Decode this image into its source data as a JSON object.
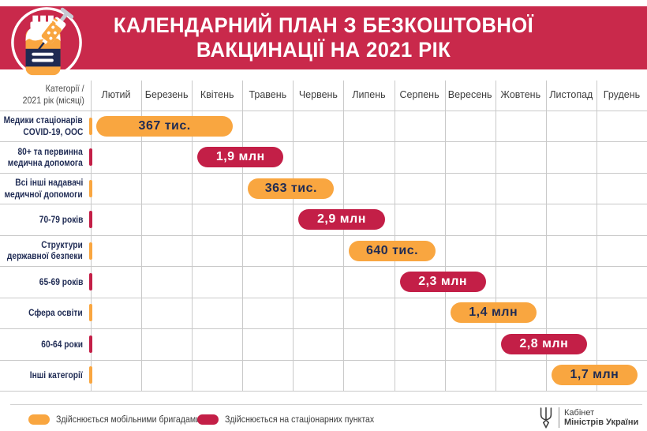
{
  "header": {
    "title_line1": "КАЛЕНДАРНИЙ ПЛАН З БЕЗКОШТОВНОЇ",
    "title_line2": "ВАКЦИНАЦІЇ НА 2021 РІК",
    "banner_color": "#c9294b",
    "icon": "vaccine-vial-and-syringe"
  },
  "chart_data": {
    "type": "gantt",
    "title": "Календарний план з безкоштовної вакцинації на 2021 рік",
    "corner_label_lines": [
      "Категорії /",
      "2021 рік (місяці)"
    ],
    "months": [
      "Лютий",
      "Березень",
      "Квітень",
      "Травень",
      "Червень",
      "Липень",
      "Серпень",
      "Вересень",
      "Жовтень",
      "Листопад",
      "Грудень"
    ],
    "grid": true,
    "channels": {
      "mobile": {
        "label": "Здійснюється мобільними бригадами",
        "color": "#f9a640",
        "text_color": "#1f2b54"
      },
      "stationary": {
        "label": "Здійснюється на стаціонарних пунктах",
        "color": "#c31f47",
        "text_color": "#ffffff"
      }
    },
    "rows": [
      {
        "label_lines": [
          "Медики стаціонарів",
          "COVID-19, ООС"
        ],
        "value": "367 тис.",
        "start": "Лютий",
        "end": "Квітень",
        "start_index": 0,
        "end_index": 2,
        "channel": "mobile"
      },
      {
        "label_lines": [
          "80+ та первинна",
          "медична допомога"
        ],
        "value": "1,9 млн",
        "start": "Квітень",
        "end": "Травень",
        "start_index": 2,
        "end_index": 3,
        "channel": "stationary"
      },
      {
        "label_lines": [
          "Всі інші надавачі",
          "медичної допомоги"
        ],
        "value": "363 тис.",
        "start": "Травень",
        "end": "Червень",
        "start_index": 3,
        "end_index": 4,
        "channel": "mobile"
      },
      {
        "label_lines": [
          "70-79 років"
        ],
        "value": "2,9 млн",
        "start": "Червень",
        "end": "Липень",
        "start_index": 4,
        "end_index": 5,
        "channel": "stationary"
      },
      {
        "label_lines": [
          "Структури",
          "державної безпеки"
        ],
        "value": "640 тис.",
        "start": "Липень",
        "end": "Серпень",
        "start_index": 5,
        "end_index": 6,
        "channel": "mobile"
      },
      {
        "label_lines": [
          "65-69 років"
        ],
        "value": "2,3 млн",
        "start": "Серпень",
        "end": "Вересень",
        "start_index": 6,
        "end_index": 7,
        "channel": "stationary"
      },
      {
        "label_lines": [
          "Сфера освіти"
        ],
        "value": "1,4 млн",
        "start": "Вересень",
        "end": "Жовтень",
        "start_index": 7,
        "end_index": 8,
        "channel": "mobile"
      },
      {
        "label_lines": [
          "60-64 роки"
        ],
        "value": "2,8 млн",
        "start": "Жовтень",
        "end": "Листопад",
        "start_index": 8,
        "end_index": 9,
        "channel": "stationary"
      },
      {
        "label_lines": [
          "Інші категорії"
        ],
        "value": "1,7 млн",
        "start": "Листопад",
        "end": "Грудень",
        "start_index": 9,
        "end_index": 10,
        "channel": "mobile"
      }
    ],
    "legend": [
      {
        "label": "Здійснюється мобільними бригадами",
        "color": "#f9a640"
      },
      {
        "label": "Здійснюється на стаціонарних пунктах",
        "color": "#c31f47"
      }
    ],
    "colors": {
      "navy_text": "#1f2b54",
      "gridline": "#c9c9c9",
      "month_text": "#3d3d3d"
    }
  },
  "footer": {
    "logo_line1": "Кабінет",
    "logo_line2": "Міністрів України"
  }
}
